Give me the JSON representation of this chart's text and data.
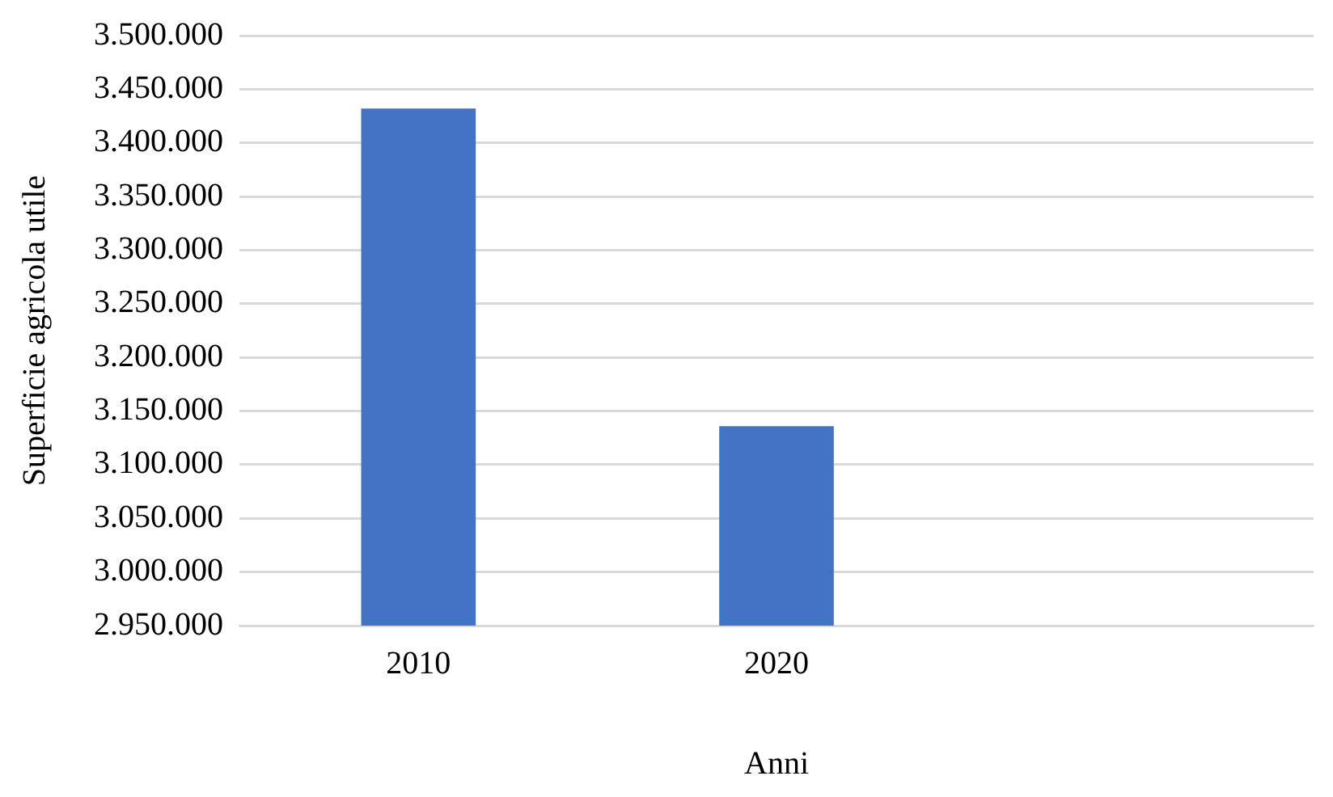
{
  "chart_data": {
    "type": "bar",
    "xlabel": "Anni",
    "ylabel": "Superficie agricola utile",
    "categories": [
      "2010",
      "2020",
      null
    ],
    "values": [
      3432000,
      3136000,
      null
    ],
    "color": "#4472c4",
    "ylim": [
      2950000,
      3500000
    ],
    "yticks": [
      {
        "value": 2950000,
        "label": "2.950.000"
      },
      {
        "value": 3000000,
        "label": "3.000.000"
      },
      {
        "value": 3050000,
        "label": "3.050.000"
      },
      {
        "value": 3100000,
        "label": "3.100.000"
      },
      {
        "value": 3150000,
        "label": "3.150.000"
      },
      {
        "value": 3200000,
        "label": "3.200.000"
      },
      {
        "value": 3250000,
        "label": "3.250.000"
      },
      {
        "value": 3300000,
        "label": "3.300.000"
      },
      {
        "value": 3350000,
        "label": "3.350.000"
      },
      {
        "value": 3400000,
        "label": "3.400.000"
      },
      {
        "value": 3450000,
        "label": "3.450.000"
      },
      {
        "value": 3500000,
        "label": "3.500.000"
      }
    ],
    "grid": "y",
    "legend": false
  }
}
